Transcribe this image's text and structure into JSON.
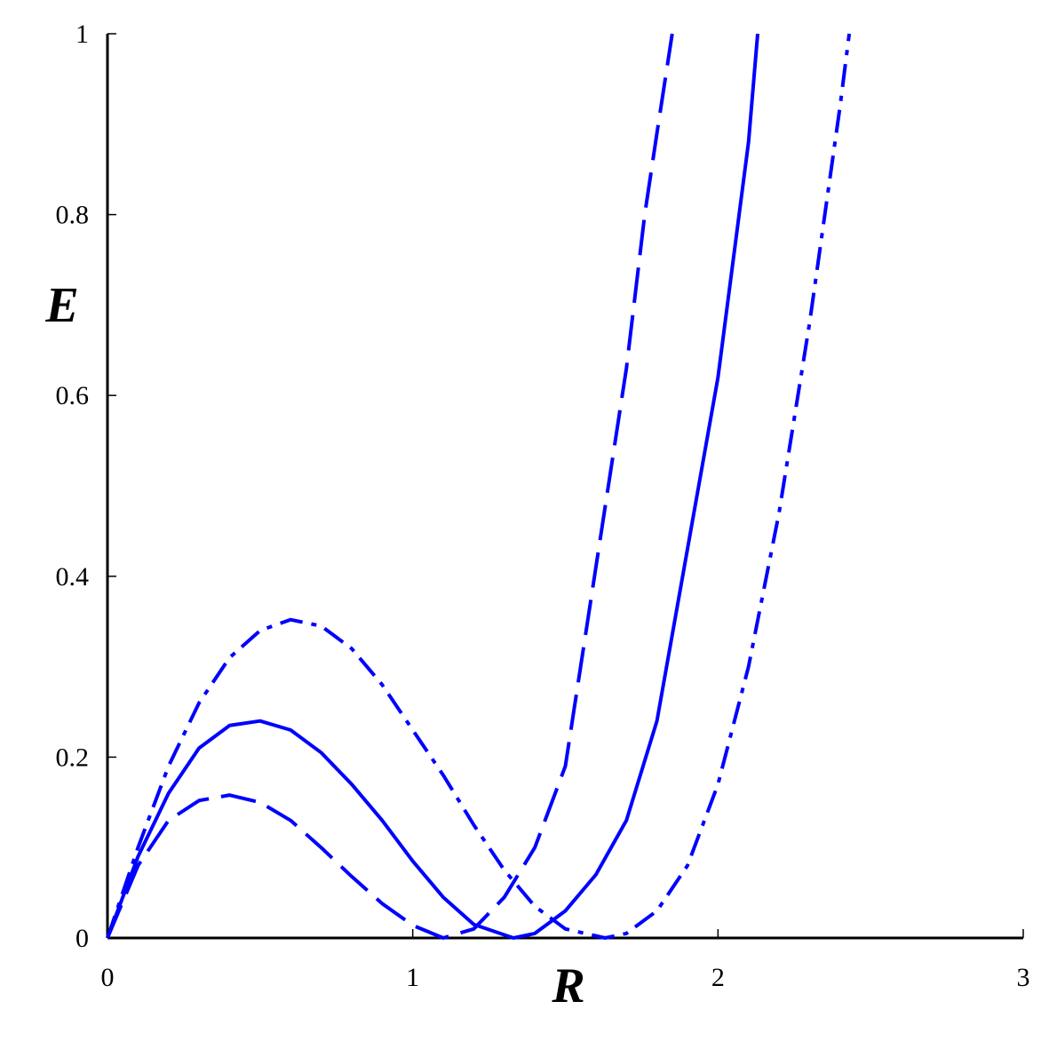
{
  "chart_data": {
    "type": "line",
    "xlabel": "R",
    "ylabel": "E",
    "xlim": [
      0,
      3
    ],
    "ylim": [
      0,
      1
    ],
    "xticks": [
      0,
      1,
      2,
      3
    ],
    "yticks": [
      0,
      0.2,
      0.4,
      0.6,
      0.8,
      1
    ],
    "series": [
      {
        "color": "#0000ff",
        "line_style": "dashed",
        "x": [
          0,
          0.1,
          0.2,
          0.3,
          0.4,
          0.5,
          0.6,
          0.7,
          0.8,
          0.9,
          1.0,
          1.1,
          1.2,
          1.3,
          1.4,
          1.5,
          1.55,
          1.6,
          1.7,
          1.76,
          1.8,
          1.85
        ],
        "values": [
          0,
          0.08,
          0.13,
          0.152,
          0.158,
          0.15,
          0.13,
          0.1,
          0.068,
          0.038,
          0.014,
          0,
          0.01,
          0.045,
          0.1,
          0.19,
          0.3,
          0.41,
          0.63,
          0.8,
          0.89,
          1.0
        ]
      },
      {
        "color": "#0000ff",
        "line_style": "solid",
        "x": [
          0,
          0.1,
          0.2,
          0.3,
          0.4,
          0.5,
          0.6,
          0.7,
          0.8,
          0.9,
          1.0,
          1.1,
          1.2,
          1.33,
          1.4,
          1.5,
          1.6,
          1.7,
          1.8,
          1.9,
          2.0,
          2.1,
          2.13
        ],
        "values": [
          0,
          0.09,
          0.16,
          0.21,
          0.235,
          0.24,
          0.23,
          0.205,
          0.17,
          0.13,
          0.085,
          0.045,
          0.015,
          0,
          0.005,
          0.03,
          0.07,
          0.13,
          0.24,
          0.43,
          0.62,
          0.88,
          1.0
        ]
      },
      {
        "color": "#0000ff",
        "line_style": "dashdot",
        "x": [
          0,
          0.1,
          0.2,
          0.3,
          0.4,
          0.5,
          0.6,
          0.7,
          0.8,
          0.9,
          1.0,
          1.1,
          1.2,
          1.3,
          1.4,
          1.5,
          1.63,
          1.7,
          1.8,
          1.9,
          2.0,
          2.1,
          2.2,
          2.3,
          2.4,
          2.43
        ],
        "values": [
          0,
          0.1,
          0.19,
          0.26,
          0.31,
          0.34,
          0.352,
          0.345,
          0.32,
          0.28,
          0.23,
          0.18,
          0.125,
          0.075,
          0.035,
          0.01,
          0,
          0.005,
          0.03,
          0.08,
          0.17,
          0.3,
          0.47,
          0.68,
          0.92,
          1.0
        ]
      }
    ]
  }
}
